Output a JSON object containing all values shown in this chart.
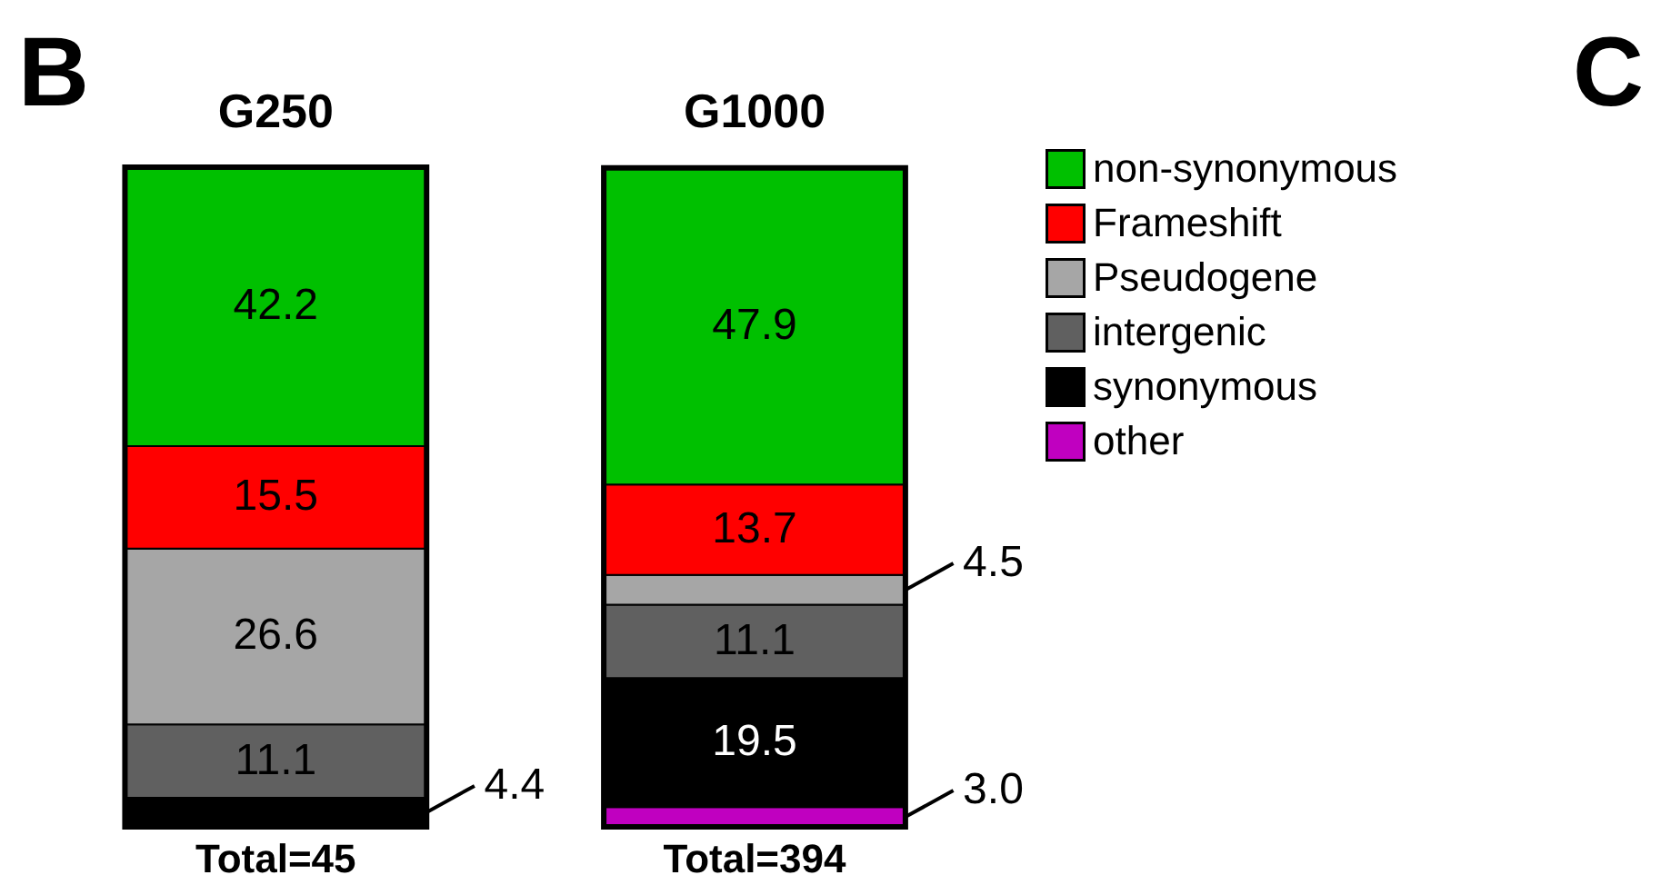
{
  "chart_data": {
    "type": "bar",
    "stacked": true,
    "data_labels": true,
    "legend": "top right",
    "categories": [
      "G250",
      "G1000"
    ],
    "series": [
      {
        "name": "other",
        "color": "#c000c0",
        "values": [
          null,
          3.0
        ],
        "value_labels": [
          null,
          "3.0"
        ]
      },
      {
        "name": "synonymous",
        "color": "#000000",
        "values": [
          4.4,
          19.5
        ]
      },
      {
        "name": "intergenic",
        "color": "#606060",
        "values": [
          11.1,
          11.1
        ]
      },
      {
        "name": "Pseudogene",
        "color": "#a6a6a6",
        "values": [
          26.6,
          4.5
        ]
      },
      {
        "name": "Frameshift",
        "color": "#ff0000",
        "values": [
          15.5,
          13.7
        ]
      },
      {
        "name": "non-synonymous",
        "color": "#00c000",
        "values": [
          42.2,
          47.9
        ]
      }
    ],
    "annotations": [
      "B",
      "C",
      "Total=45",
      "Total=394"
    ]
  }
}
